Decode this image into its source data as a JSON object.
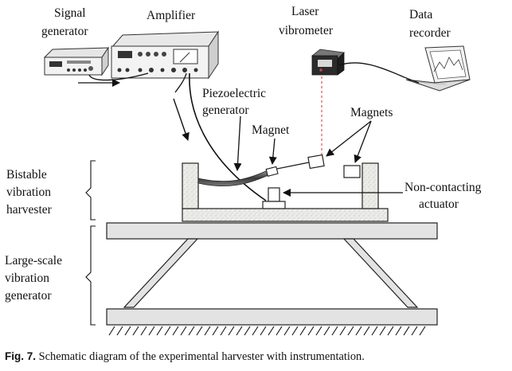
{
  "labels": {
    "signal_generator": [
      "Signal",
      "generator"
    ],
    "amplifier": "Amplifier",
    "laser_vibrometer": [
      "Laser",
      "vibrometer"
    ],
    "data_recorder": [
      "Data",
      "recorder"
    ],
    "piezoelectric_generator": [
      "Piezoelectric",
      "generator"
    ],
    "magnet": "Magnet",
    "magnets": "Magnets",
    "non_contacting_actuator": [
      "Non-contacting",
      "actuator"
    ],
    "bistable_harvester": [
      "Bistable",
      "vibration",
      "harvester"
    ],
    "large_scale_generator": [
      "Large-scale",
      "vibration",
      "generator"
    ]
  },
  "caption": {
    "label": "Fig. 7.",
    "text": " Schematic diagram of the experimental harvester with instrumentation."
  },
  "colors": {
    "laser_beam": "#e06060",
    "concrete_fill": "#e9e9e6",
    "plate_fill": "#e3e3e3"
  },
  "icons": [
    "signal-generator-icon",
    "amplifier-icon",
    "laser-vibrometer-icon",
    "laptop-icon",
    "ground-hatch-icon"
  ]
}
